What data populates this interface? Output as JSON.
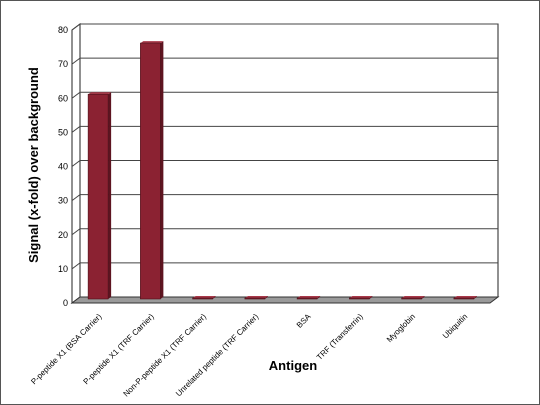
{
  "chart_data": {
    "type": "bar",
    "style": "3d-bar",
    "title": "",
    "xlabel": "Antigen",
    "ylabel": "Signal (x-fold) over background",
    "ylim": [
      0,
      80
    ],
    "yticks": [
      "0",
      "10",
      "20",
      "30",
      "40",
      "50",
      "60",
      "70",
      "80"
    ],
    "grid": true,
    "legend": "none",
    "categories": [
      "P-peptide X1 (BSA Carrier)",
      "P-peptide X1 (TRF Carrier)",
      "Non-P-peptide X1 (TRF Carrier)",
      "Unrelated peptide (TRF Carrier)",
      "BSA",
      "TRF (Transferrin)",
      "Myoglobin",
      "Ubiquitin"
    ],
    "values": [
      60,
      75,
      0.3,
      0.3,
      0.3,
      0.3,
      0.3,
      0.3
    ],
    "colors": {
      "bar_front": "#8b2232",
      "bar_side": "#5e1420",
      "bar_top": "#a83a4a",
      "wall": "#ffffff",
      "floor": "#9a9a9a",
      "grid": "#444444"
    }
  }
}
